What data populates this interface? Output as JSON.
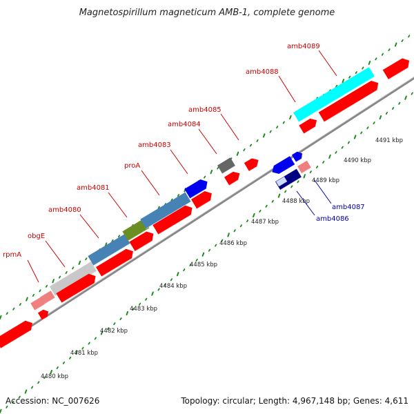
{
  "title": "Magnetospirillum magneticum AMB-1, complete genome",
  "footer": {
    "accession": "Accession: NC_007626",
    "topology": "Topology: circular; Length: 4,967,148 bp; Genes: 4,611"
  },
  "colors": {
    "forward_cds": "#ff0000",
    "reverse_cds": "#0000ee",
    "forward_label": "#cc0000",
    "reverse_label": "#0000aa",
    "backbone": "#888888",
    "tick": "#1a8c1a",
    "pseudo": "#f08080",
    "gray_feature": "#c8c8c8",
    "steel_feature": "#4682b4",
    "olive_feature": "#6b8e23",
    "cyan_feature": "#00ffff",
    "dark_feature": "#666666",
    "navy_feature": "#000080"
  },
  "kbp_ticks": [
    {
      "label": "4480 kbp",
      "pos": 4480
    },
    {
      "label": "4481 kbp",
      "pos": 4481
    },
    {
      "label": "4482 kbp",
      "pos": 4482
    },
    {
      "label": "4483 kbp",
      "pos": 4483
    },
    {
      "label": "4484 kbp",
      "pos": 4484
    },
    {
      "label": "4485 kbp",
      "pos": 4485
    },
    {
      "label": "4486 kbp",
      "pos": 4486
    },
    {
      "label": "4487 kbp",
      "pos": 4487
    },
    {
      "label": "4488 kbp",
      "pos": 4488
    },
    {
      "label": "4489 kbp",
      "pos": 4489
    },
    {
      "label": "4490 kbp",
      "pos": 4490
    },
    {
      "label": "4491 kbp",
      "pos": 4491
    }
  ],
  "gene_labels": [
    {
      "name": "rpmA",
      "strand": "forward"
    },
    {
      "name": "obgE",
      "strand": "forward"
    },
    {
      "name": "amb4080",
      "strand": "forward"
    },
    {
      "name": "amb4081",
      "strand": "forward"
    },
    {
      "name": "proA",
      "strand": "forward"
    },
    {
      "name": "amb4083",
      "strand": "forward"
    },
    {
      "name": "amb4084",
      "strand": "forward"
    },
    {
      "name": "amb4085",
      "strand": "forward"
    },
    {
      "name": "amb4086",
      "strand": "reverse"
    },
    {
      "name": "amb4087",
      "strand": "reverse"
    },
    {
      "name": "amb4088",
      "strand": "forward"
    },
    {
      "name": "amb4089",
      "strand": "forward"
    }
  ]
}
